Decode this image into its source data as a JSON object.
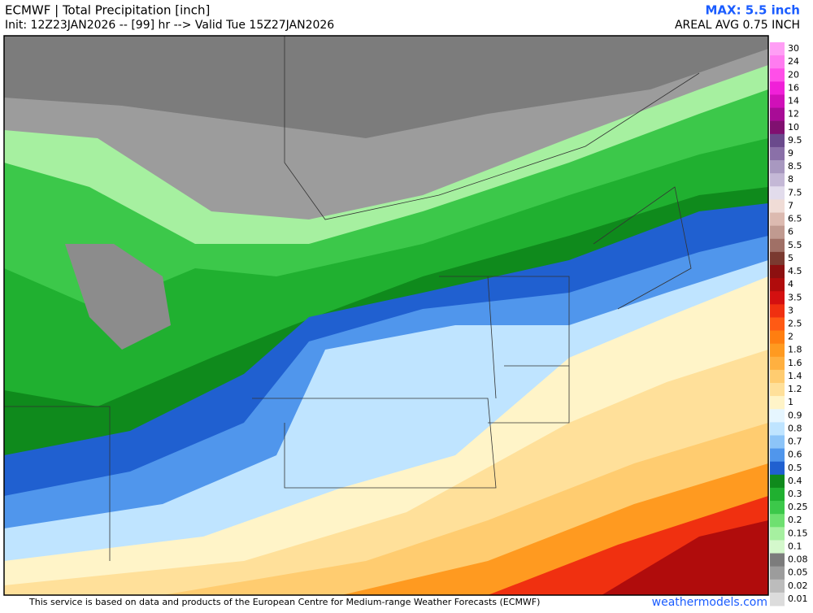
{
  "header": {
    "title": "ECMWF | Total Precipitation [inch]",
    "init": "Init: 12Z23JAN2026 -- [99] hr --> Valid Tue 15Z27JAN2026",
    "max": "MAX: 5.5 inch",
    "areal_avg": "AREAL AVG 0.75 INCH"
  },
  "colorbar": {
    "levels": [
      {
        "label": "30",
        "color": "#ff9ef5"
      },
      {
        "label": "24",
        "color": "#ff7cf0"
      },
      {
        "label": "20",
        "color": "#ff4fe8"
      },
      {
        "label": "16",
        "color": "#f020d8"
      },
      {
        "label": "14",
        "color": "#d010b8"
      },
      {
        "label": "12",
        "color": "#a80c96"
      },
      {
        "label": "10",
        "color": "#801070"
      },
      {
        "label": "9.5",
        "color": "#6a4a8c"
      },
      {
        "label": "9",
        "color": "#8a70a8"
      },
      {
        "label": "8.5",
        "color": "#a898c0"
      },
      {
        "label": "8",
        "color": "#c4b8d6"
      },
      {
        "label": "7.5",
        "color": "#e2dcec"
      },
      {
        "label": "7",
        "color": "#f0dcd6"
      },
      {
        "label": "6.5",
        "color": "#dcbab0"
      },
      {
        "label": "6",
        "color": "#c09a90"
      },
      {
        "label": "5.5",
        "color": "#a07066"
      },
      {
        "label": "5",
        "color": "#7a3a30"
      },
      {
        "label": "4.5",
        "color": "#8c1010"
      },
      {
        "label": "4",
        "color": "#b00c0c"
      },
      {
        "label": "3.5",
        "color": "#d41010"
      },
      {
        "label": "3",
        "color": "#f03010"
      },
      {
        "label": "2.5",
        "color": "#ff5a14"
      },
      {
        "label": "2",
        "color": "#ff7e10"
      },
      {
        "label": "1.8",
        "color": "#ff9a20"
      },
      {
        "label": "1.6",
        "color": "#ffb040"
      },
      {
        "label": "1.4",
        "color": "#ffcc70"
      },
      {
        "label": "1.2",
        "color": "#ffe09a"
      },
      {
        "label": "1",
        "color": "#fff4c8"
      },
      {
        "label": "0.9",
        "color": "#e6f6ff"
      },
      {
        "label": "0.8",
        "color": "#bfe4ff"
      },
      {
        "label": "0.7",
        "color": "#8cc4f8"
      },
      {
        "label": "0.6",
        "color": "#5096ec"
      },
      {
        "label": "0.5",
        "color": "#2060d0"
      },
      {
        "label": "0.4",
        "color": "#0f8a1c"
      },
      {
        "label": "0.3",
        "color": "#20b030"
      },
      {
        "label": "0.25",
        "color": "#3cc84a"
      },
      {
        "label": "0.2",
        "color": "#6ee070"
      },
      {
        "label": "0.15",
        "color": "#a6f0a0"
      },
      {
        "label": "0.1",
        "color": "#d4f8cc"
      },
      {
        "label": "0.08",
        "color": "#7c7c7c"
      },
      {
        "label": "0.05",
        "color": "#9c9c9c"
      },
      {
        "label": "0.02",
        "color": "#bcbcbc"
      },
      {
        "label": "0.01",
        "color": "#dcdcdc"
      }
    ]
  },
  "footer": {
    "notice": "This service is based on data and products of the European Centre for Medium-range Weather Forecasts (ECMWF)",
    "site": "weathermodels.com"
  }
}
